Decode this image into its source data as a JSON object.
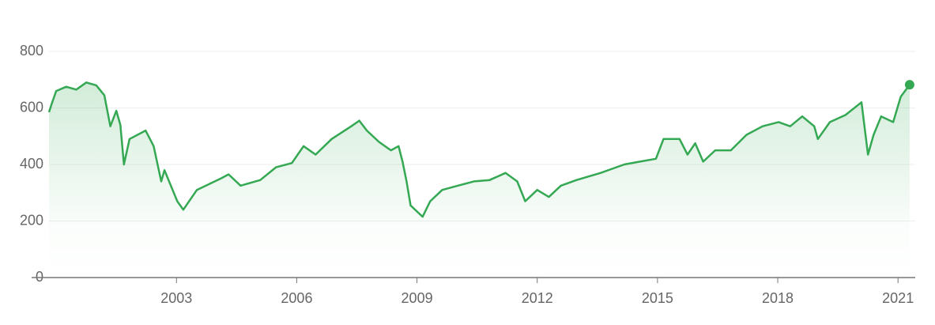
{
  "chart_data": {
    "type": "line",
    "color": "#34a853",
    "x": [
      1999.82,
      1999.9,
      2000.0,
      2000.25,
      2000.5,
      2000.75,
      2001.0,
      2001.2,
      2001.35,
      2001.5,
      2001.6,
      2001.69,
      2001.83,
      2002.23,
      2002.43,
      2002.62,
      2002.7,
      2003.02,
      2003.17,
      2003.51,
      2004.1,
      2004.3,
      2004.6,
      2005.09,
      2005.48,
      2005.88,
      2006.17,
      2006.47,
      2006.87,
      2007.36,
      2007.56,
      2007.75,
      2008.05,
      2008.35,
      2008.54,
      2008.64,
      2008.74,
      2008.84,
      2009.14,
      2009.33,
      2009.63,
      2010.02,
      2010.42,
      2010.81,
      2011.21,
      2011.5,
      2011.7,
      2012.0,
      2012.29,
      2012.59,
      2012.98,
      2013.58,
      2014.17,
      2014.56,
      2014.96,
      2015.15,
      2015.55,
      2015.75,
      2015.94,
      2016.14,
      2016.44,
      2016.83,
      2017.22,
      2017.62,
      2018.02,
      2018.31,
      2018.61,
      2018.91,
      2019.0,
      2019.3,
      2019.69,
      2020.09,
      2020.25,
      2020.39,
      2020.58,
      2020.88,
      2021.07,
      2021.29
    ],
    "values": [
      585,
      620,
      660,
      675,
      665,
      690,
      680,
      645,
      535,
      590,
      540,
      400,
      490,
      520,
      465,
      340,
      380,
      270,
      240,
      310,
      350,
      365,
      325,
      345,
      390,
      405,
      465,
      435,
      490,
      535,
      555,
      520,
      480,
      450,
      465,
      410,
      340,
      255,
      215,
      270,
      310,
      325,
      340,
      345,
      370,
      340,
      270,
      310,
      285,
      325,
      345,
      370,
      400,
      410,
      420,
      490,
      490,
      435,
      475,
      410,
      450,
      450,
      505,
      535,
      550,
      535,
      570,
      535,
      490,
      550,
      575,
      620,
      435,
      505,
      570,
      550,
      640,
      682
    ],
    "xlim": [
      1999.82,
      2021.43
    ],
    "xticks": [
      2003,
      2006,
      2009,
      2012,
      2015,
      2018,
      2021
    ],
    "ylim": [
      0,
      900
    ],
    "yticks": [
      0,
      200,
      400,
      600,
      800
    ],
    "grid": true
  }
}
